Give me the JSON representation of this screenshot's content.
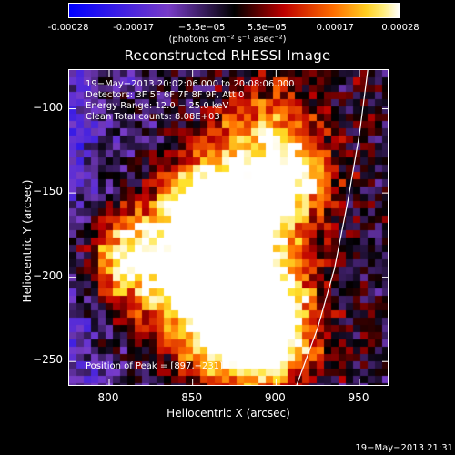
{
  "colorbar": {
    "tick_labels": [
      "-0.00028",
      "-0.00017",
      "−5.5e−05",
      "5.5e−05",
      "0.00017",
      "0.00028"
    ],
    "tick_values": [
      -0.00028,
      -0.00017,
      -5.5e-05,
      5.5e-05,
      0.00017,
      0.00028
    ],
    "range": [
      -0.00028,
      0.00028
    ],
    "unit_label": "(photons cm⁻² s⁻¹ asec⁻²)"
  },
  "chart_data": {
    "type": "heatmap",
    "title": "Reconstructed RHESSI Image",
    "xlabel": "Heliocentric X (arcsec)",
    "ylabel": "Heliocentric Y (arcsec)",
    "xlim": [
      776,
      968
    ],
    "ylim": [
      -265,
      -77
    ],
    "x_ticks": [
      800,
      850,
      900,
      950
    ],
    "y_ticks": [
      -100,
      -150,
      -200,
      -250
    ],
    "annotations": [
      "19−May−2013 20:02:06.000 to 20:08:06.000",
      "Detectors: 3F 5F 6F 7F 8F 9F, Att 0",
      "Energy Range: 12.0 − 25.0 keV",
      "Clean     Total counts: 8.08E+03"
    ],
    "peak_label": "Position of Peak = [897,−231]",
    "peak": [
      897,
      -231
    ],
    "limb_arc_points": [
      [
        912,
        -265
      ],
      [
        925,
        -230
      ],
      [
        935,
        -195
      ],
      [
        943,
        -155
      ],
      [
        950,
        -115
      ],
      [
        955,
        -77
      ]
    ]
  },
  "timestamp": "19−May−2013 21:31"
}
